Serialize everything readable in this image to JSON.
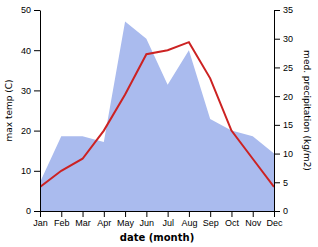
{
  "chart_data": {
    "type": "line",
    "categories": [
      "Jan",
      "Feb",
      "Mar",
      "Apr",
      "May",
      "Jun",
      "Jul",
      "Aug",
      "Sep",
      "Oct",
      "Nov",
      "Dec"
    ],
    "series": [
      {
        "type": "area",
        "axis": "y2",
        "color": "#aabbee",
        "values": [
          5,
          13,
          13,
          12,
          33,
          30,
          22,
          28,
          16,
          14,
          13,
          10
        ]
      },
      {
        "type": "line",
        "color": "#cc2222",
        "values": [
          6,
          10,
          13,
          20,
          29,
          39,
          40,
          42,
          33,
          20,
          13,
          6
        ]
      }
    ],
    "xlabel": "date (month)",
    "ylabel": "max temp (C)",
    "y2label": "med. precipitation (kg/m2)",
    "ylim": [
      0,
      50
    ],
    "yticks": [
      0,
      10,
      20,
      30,
      40,
      50
    ],
    "y2lim": [
      0,
      35
    ],
    "y2ticks": [
      0,
      5,
      10,
      15,
      20,
      25,
      30,
      35
    ],
    "grid": false
  }
}
